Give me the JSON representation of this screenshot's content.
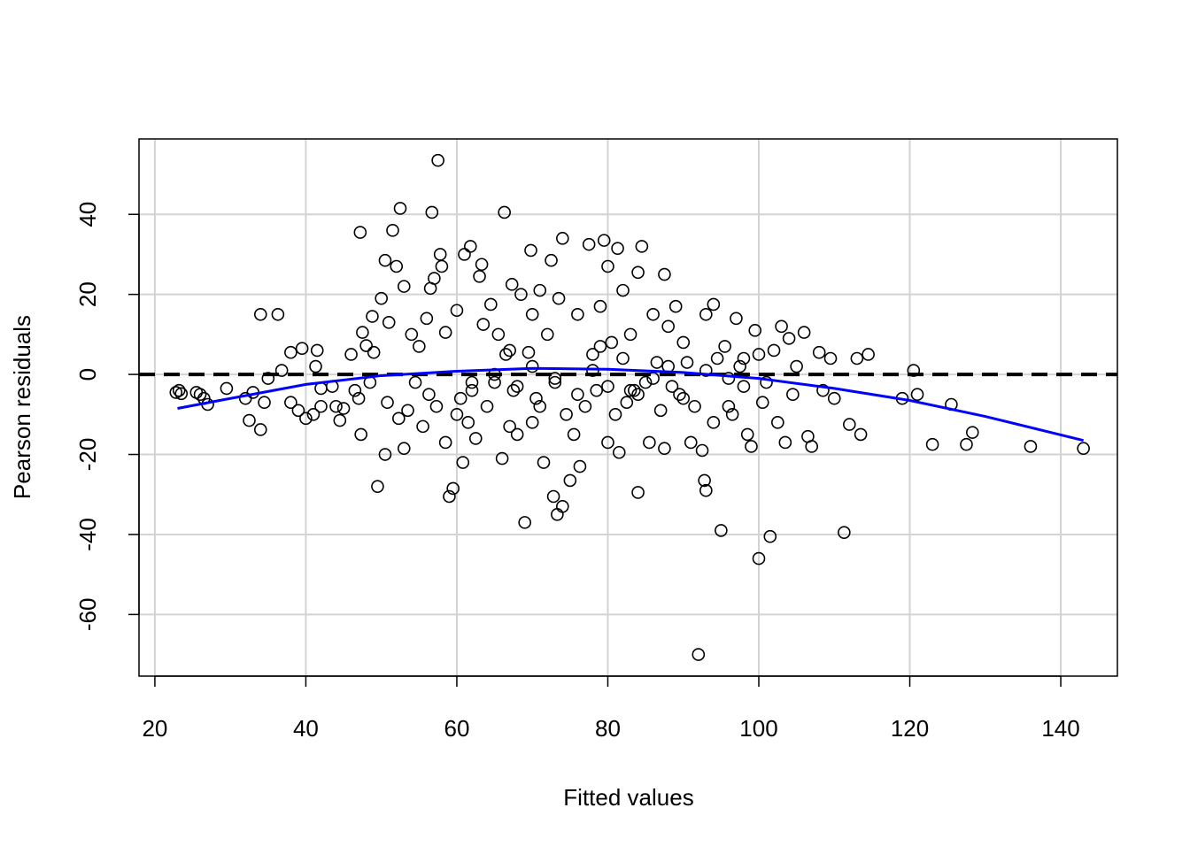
{
  "chart_data": {
    "type": "scatter",
    "xlabel": "Fitted values",
    "ylabel": "Pearson residuals",
    "xlim": [
      17.9,
      147.5
    ],
    "ylim": [
      -75.4,
      58.85
    ],
    "xticks": [
      20,
      40,
      60,
      80,
      100,
      120,
      140
    ],
    "yticks": [
      -60,
      -40,
      -20,
      0,
      20,
      40
    ],
    "grid": true,
    "hline": 0,
    "series": [
      {
        "type": "scatter",
        "color": "#000000",
        "x": [
          22.8,
          23.2,
          23.5,
          25.5,
          26,
          26.5,
          27,
          29.5,
          32,
          32.5,
          33,
          34,
          34,
          34.5,
          35,
          36.3,
          36.8,
          38,
          38,
          39,
          39.5,
          40,
          41,
          41.3,
          41.5,
          42,
          42,
          43.5,
          44,
          44.5,
          45,
          46,
          46.5,
          47,
          47.2,
          47.3,
          47.5,
          48,
          48.5,
          48.8,
          49,
          49.5,
          50,
          50.5,
          50.5,
          50.8,
          51,
          51.5,
          52,
          52.3,
          52.5,
          53,
          53,
          53.5,
          54,
          54.5,
          55,
          55.5,
          56,
          56.3,
          56.5,
          56.7,
          57,
          57.3,
          57.5,
          57.8,
          58,
          58.5,
          58.5,
          59,
          59.5,
          60,
          60,
          60.5,
          60.8,
          61,
          61.5,
          61.8,
          62,
          62.5,
          63,
          63.3,
          63.5,
          64,
          64.5,
          65,
          65.5,
          66,
          66.3,
          66.5,
          67,
          67.3,
          67.5,
          68,
          68.5,
          69,
          69.5,
          69.8,
          70,
          70,
          70.5,
          71,
          71.5,
          72,
          72.5,
          72.8,
          73,
          73.3,
          73.5,
          74,
          74,
          74.5,
          75,
          75.5,
          76,
          76.3,
          77,
          77.5,
          78,
          78.5,
          79,
          79.5,
          80,
          80,
          80.5,
          81,
          81.3,
          81.5,
          82,
          82.5,
          83,
          83.5,
          84,
          84,
          84.5,
          85,
          85.5,
          86,
          86.5,
          87,
          87.5,
          87.5,
          88,
          88.5,
          89,
          89.5,
          90,
          90.5,
          91,
          91.5,
          92,
          92.5,
          92.8,
          93,
          93,
          94,
          94,
          94.5,
          95,
          95.5,
          96,
          96.5,
          97,
          97.5,
          98,
          98.5,
          99,
          99.5,
          100,
          100,
          100.5,
          101,
          101.5,
          102,
          102.5,
          103,
          103.5,
          104,
          104.5,
          105,
          106,
          106.5,
          107,
          108,
          108.5,
          109.5,
          110,
          111.3,
          112,
          113,
          113.5,
          114.5,
          119,
          120.5,
          121,
          123,
          125.5,
          127.5,
          128.3,
          136,
          143,
          62,
          65,
          68,
          70,
          73,
          76,
          78,
          80,
          82,
          84,
          86,
          88,
          90,
          93,
          96,
          98,
          83,
          79,
          71,
          67
        ],
        "y": [
          -4.5,
          -4,
          -4.8,
          -4.5,
          -5,
          -6,
          -7.5,
          -3.5,
          -6,
          -11.5,
          -4.5,
          15,
          -13.8,
          -7,
          -1,
          15,
          1,
          5.5,
          -7,
          -9,
          6.5,
          -11,
          -10,
          2,
          6,
          -8,
          -3.5,
          -3,
          -8,
          -11.5,
          -8.5,
          5,
          -4,
          -6,
          35.5,
          -15,
          10.5,
          7.2,
          -2,
          14.5,
          5.5,
          -28,
          19,
          28.5,
          -20,
          -7,
          13,
          36,
          27,
          -11,
          41.5,
          22,
          -18.5,
          -9,
          10,
          -2,
          7,
          -13,
          14,
          -5,
          21.5,
          40.5,
          24,
          -8,
          53.5,
          30,
          27,
          10.5,
          -17,
          -30.5,
          -28.5,
          16,
          -10,
          -6,
          -22,
          30,
          -12,
          32,
          -4,
          -16,
          24.5,
          27.5,
          12.5,
          -8,
          17.5,
          -2,
          10,
          -21,
          40.5,
          5,
          -13,
          22.5,
          -4,
          -15,
          20,
          -37,
          5.5,
          31,
          15,
          -12,
          -6,
          21,
          -22,
          10,
          28.5,
          -30.5,
          -2,
          -35,
          19,
          34,
          -33,
          -10,
          -26.5,
          -15,
          15,
          -23,
          -8,
          32.5,
          5,
          -4,
          17,
          33.5,
          27,
          -17,
          8,
          -10,
          31.5,
          -19.5,
          21,
          -7,
          10,
          -4,
          25.5,
          -29.5,
          32,
          -2,
          -17,
          15,
          3,
          -9,
          25,
          -18.5,
          12,
          -3,
          17,
          -5,
          8,
          3,
          -17,
          -8,
          -70,
          -19,
          -26.5,
          -29,
          15,
          17.5,
          -12,
          4,
          -39,
          7,
          -1,
          -10,
          14,
          2,
          -3,
          -15,
          -18,
          11,
          -46,
          5,
          -7,
          -2,
          -40.5,
          6,
          -12,
          12,
          -17,
          9,
          -5,
          2,
          10.5,
          -15.5,
          -18,
          5.5,
          -4,
          4,
          -6,
          -39.5,
          -12.5,
          4,
          -15,
          5,
          -6,
          1,
          -5,
          -17.5,
          -7.5,
          -17.5,
          -14.5,
          -18,
          -18.5,
          -2,
          0,
          -3,
          2,
          -1,
          -5,
          1,
          -3,
          4,
          -5,
          -1,
          2,
          -6,
          1,
          -8,
          4,
          -4,
          7,
          -8,
          6
        ]
      },
      {
        "type": "line",
        "color": "#0000ff",
        "x": [
          23,
          30,
          40,
          50,
          60,
          70,
          80,
          90,
          100,
          110,
          120,
          130,
          143
        ],
        "y": [
          -8.5,
          -6,
          -2.5,
          -0.3,
          0.8,
          1.5,
          1.3,
          0.5,
          -1,
          -3.5,
          -6.5,
          -10.5,
          -16.5
        ]
      }
    ]
  }
}
